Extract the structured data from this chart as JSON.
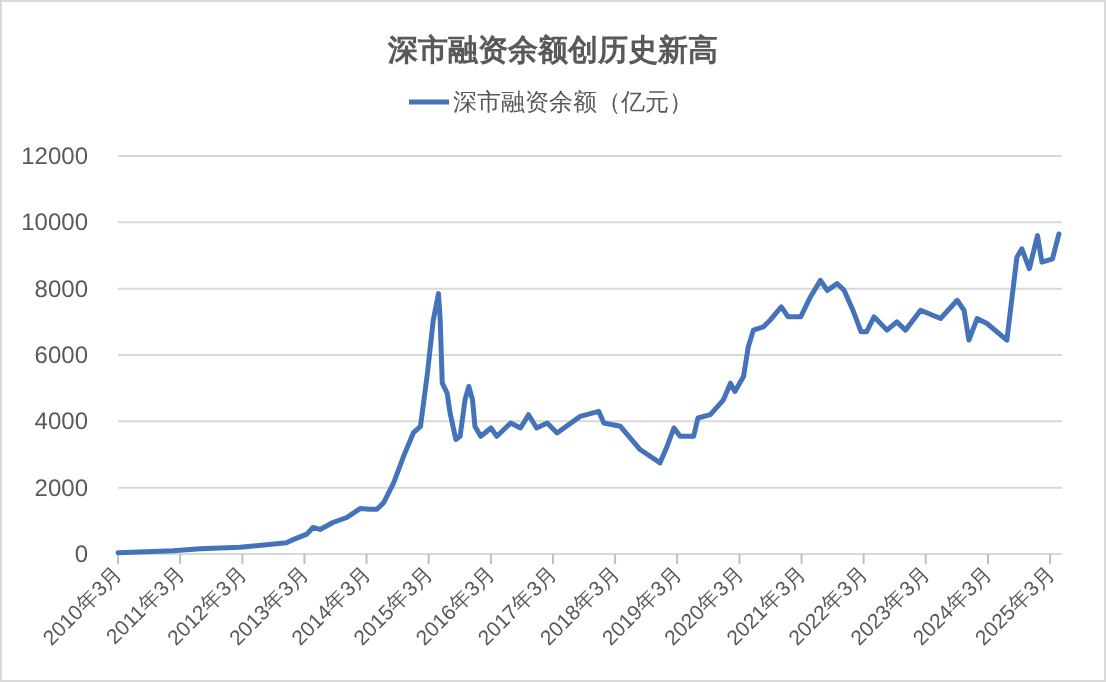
{
  "chart_data": {
    "type": "line",
    "title": "深市融资余额创历史新高",
    "x": [
      "2010-03-01",
      "2011-01-20",
      "2011-06-28",
      "2012-02-15",
      "2012-11-15",
      "2012-12-28",
      "2013-03-15",
      "2013-04-20",
      "2013-06-01",
      "2013-08-15",
      "2013-11-05",
      "2014-01-22",
      "2014-03-20",
      "2014-05-01",
      "2014-06-10",
      "2014-08-08",
      "2014-10-05",
      "2014-12-01",
      "2015-01-12",
      "2015-02-22",
      "2015-03-28",
      "2015-04-28",
      "2015-05-08",
      "2015-05-20",
      "2015-06-18",
      "2015-07-05",
      "2015-08-08",
      "2015-09-02",
      "2015-10-01",
      "2015-10-23",
      "2015-11-14",
      "2015-11-28",
      "2016-01-01",
      "2016-03-01",
      "2016-04-05",
      "2016-06-25",
      "2016-08-22",
      "2016-10-08",
      "2016-11-25",
      "2017-01-26",
      "2017-03-25",
      "2017-08-08",
      "2017-11-25",
      "2017-12-25",
      "2018-04-01",
      "2018-07-26",
      "2018-11-20",
      "2019-01-01",
      "2019-02-10",
      "2019-03-18",
      "2019-06-06",
      "2019-07-01",
      "2019-09-12",
      "2019-11-28",
      "2020-01-08",
      "2020-02-03",
      "2020-03-25",
      "2020-04-22",
      "2020-05-22",
      "2020-07-20",
      "2020-08-28",
      "2020-11-02",
      "2020-12-12",
      "2021-02-24",
      "2021-04-22",
      "2021-06-20",
      "2021-07-30",
      "2021-09-27",
      "2021-11-06",
      "2021-12-28",
      "2022-02-14",
      "2022-03-18",
      "2022-05-01",
      "2022-07-16",
      "2022-09-12",
      "2022-11-02",
      "2023-01-30",
      "2023-05-27",
      "2023-09-02",
      "2023-10-12",
      "2023-11-10",
      "2023-12-28",
      "2024-02-24",
      "2024-06-20",
      "2024-07-30",
      "2024-08-18",
      "2024-09-16",
      "2024-10-30",
      "2024-12-17",
      "2025-01-12",
      "2025-03-15",
      "2025-04-22"
    ],
    "series": [
      {
        "name": "深市融资余额（亿元）",
        "color": "#4573b9",
        "values": [
          40,
          100,
          160,
          200,
          340,
          440,
          600,
          800,
          740,
          950,
          1100,
          1370,
          1350,
          1350,
          1550,
          2150,
          2950,
          3650,
          3850,
          5450,
          7050,
          7850,
          7050,
          5150,
          4850,
          4250,
          3450,
          3550,
          4650,
          5050,
          4650,
          3850,
          3550,
          3800,
          3550,
          3950,
          3800,
          4200,
          3800,
          3950,
          3650,
          4150,
          4300,
          3950,
          3850,
          3150,
          2750,
          3250,
          3800,
          3550,
          3550,
          4100,
          4200,
          4650,
          5150,
          4900,
          5350,
          6250,
          6750,
          6850,
          7050,
          7450,
          7150,
          7150,
          7750,
          8250,
          7950,
          8150,
          7950,
          7350,
          6700,
          6700,
          7150,
          6750,
          7000,
          6750,
          7350,
          7100,
          7650,
          7350,
          6450,
          7100,
          6950,
          6450,
          8150,
          8950,
          9200,
          8600,
          9600,
          8800,
          8900,
          9650
        ]
      }
    ],
    "xlim": [
      "2010-03-01",
      "2025-05-10"
    ],
    "xticks": [
      {
        "value": "2010-03",
        "label": "2010年3月"
      },
      {
        "value": "2011-03",
        "label": "2011年3月"
      },
      {
        "value": "2012-03",
        "label": "2012年3月"
      },
      {
        "value": "2013-03",
        "label": "2013年3月"
      },
      {
        "value": "2014-03",
        "label": "2014年3月"
      },
      {
        "value": "2015-03",
        "label": "2015年3月"
      },
      {
        "value": "2016-03",
        "label": "2016年3月"
      },
      {
        "value": "2017-03",
        "label": "2017年3月"
      },
      {
        "value": "2018-03",
        "label": "2018年3月"
      },
      {
        "value": "2019-03",
        "label": "2019年3月"
      },
      {
        "value": "2020-03",
        "label": "2020年3月"
      },
      {
        "value": "2021-03",
        "label": "2021年3月"
      },
      {
        "value": "2022-03",
        "label": "2022年3月"
      },
      {
        "value": "2023-03",
        "label": "2023年3月"
      },
      {
        "value": "2024-03",
        "label": "2024年3月"
      },
      {
        "value": "2025-03",
        "label": "2025年3月"
      }
    ],
    "ylim": [
      0,
      12000
    ],
    "yticks": [
      0,
      2000,
      4000,
      6000,
      8000,
      10000,
      12000
    ],
    "grid": "y",
    "legend": "top"
  }
}
